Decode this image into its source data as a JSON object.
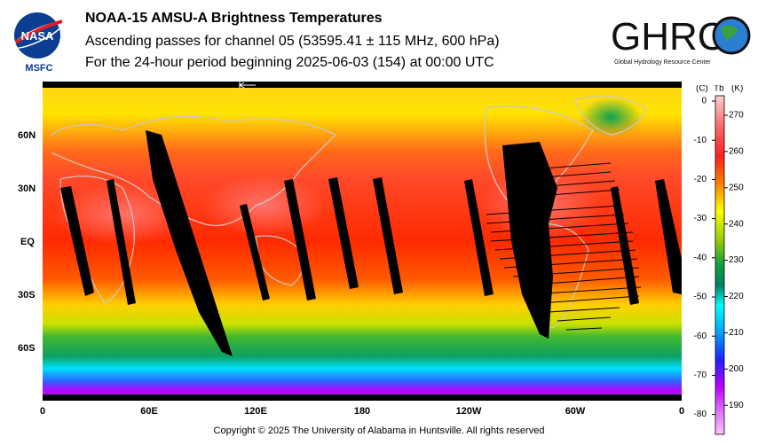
{
  "title": "NOAA-15 AMSU-A Brightness Temperatures",
  "subtitle": "Ascending passes for channel 05 (53595.41 ± 115 MHz, 600 hPa)",
  "period": "For the 24-hour period beginning 2025-06-03 (154) at 00:00 UTC",
  "logos": {
    "nasa_text": "NASA",
    "nasa_sub": "MSFC",
    "ghrc_text": "GHRC",
    "ghrc_sub": "Global Hydrology Resource Center"
  },
  "lat_labels": [
    "60N",
    "30N",
    "EQ",
    "30S",
    "60S"
  ],
  "lon_labels": [
    "0",
    "60E",
    "120E",
    "180",
    "120W",
    "60W",
    "0"
  ],
  "colorbar": {
    "unit_c": "(C)",
    "unit_tb": "Tb",
    "unit_k": "(K)",
    "celsius_ticks": [
      "0",
      "-10",
      "-20",
      "-30",
      "-40",
      "-50",
      "-60",
      "-70",
      "-80"
    ],
    "kelvin_ticks": [
      "270",
      "260",
      "250",
      "240",
      "230",
      "220",
      "210",
      "200",
      "190"
    ]
  },
  "colors": {
    "warm": "#ff2a00",
    "hot": "#ff5a5a",
    "mid": "#ffee00",
    "cool": "#10a030",
    "cold": "#00e0ff",
    "coldest": "#c000ff",
    "nodata": "#000000"
  },
  "copyright": "Copyright © 2025 The University of Alabama in Huntsville.  All rights reserved"
}
